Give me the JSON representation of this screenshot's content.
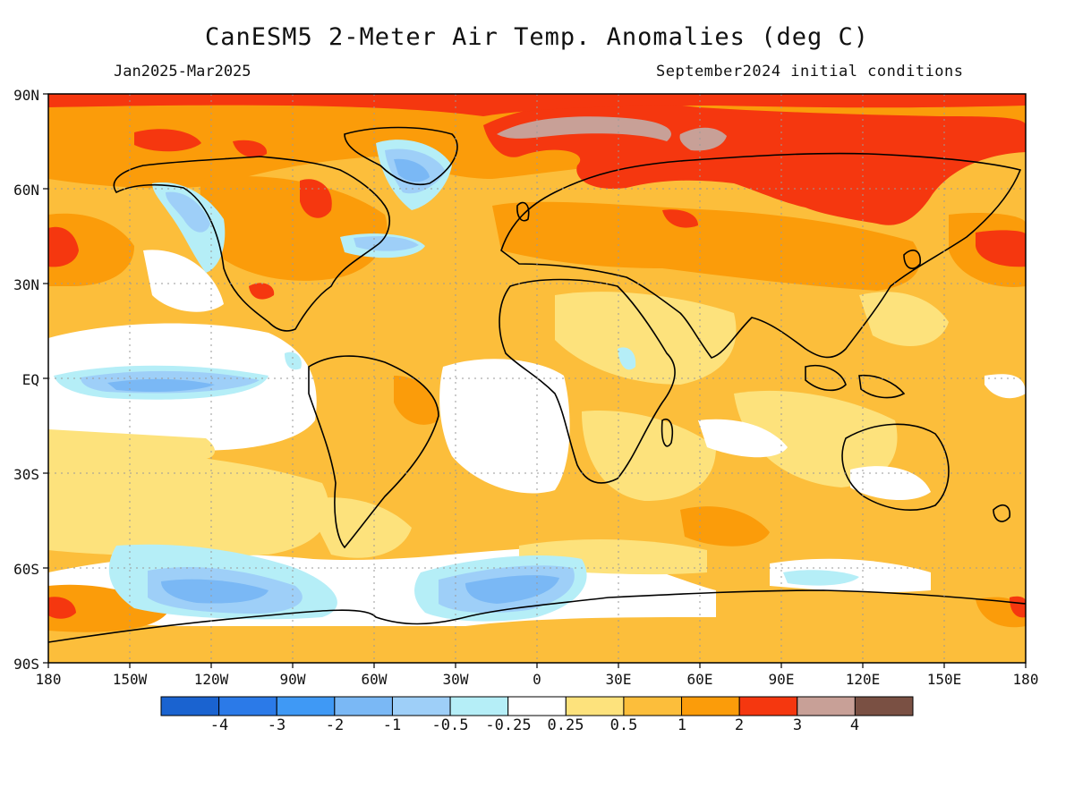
{
  "header": {
    "title": "CanESM5 2-Meter Air Temp. Anomalies (deg C)",
    "left_subtitle": "Jan2025-Mar2025",
    "right_subtitle": "September2024 initial conditions"
  },
  "map": {
    "lat_labels": [
      "90N",
      "60N",
      "30N",
      "EQ",
      "30S",
      "60S",
      "90S"
    ],
    "lon_labels": [
      "180",
      "150W",
      "120W",
      "90W",
      "60W",
      "30W",
      "0",
      "30E",
      "60E",
      "90E",
      "120E",
      "150E",
      "180"
    ]
  },
  "colorbar": {
    "colors": [
      "#1a63d0",
      "#2b7ae8",
      "#3f99f5",
      "#7ab8f5",
      "#9ecff8",
      "#b5eef7",
      "#ffffff",
      "#fde27c",
      "#fcbe3b",
      "#fb9c0a",
      "#f5370f",
      "#c8a097",
      "#7a5043"
    ],
    "labels": [
      "-4",
      "-3",
      "-2",
      "-1",
      "-0.5",
      "-0.25",
      "0.25",
      "0.5",
      "1",
      "2",
      "3",
      "4"
    ]
  }
}
